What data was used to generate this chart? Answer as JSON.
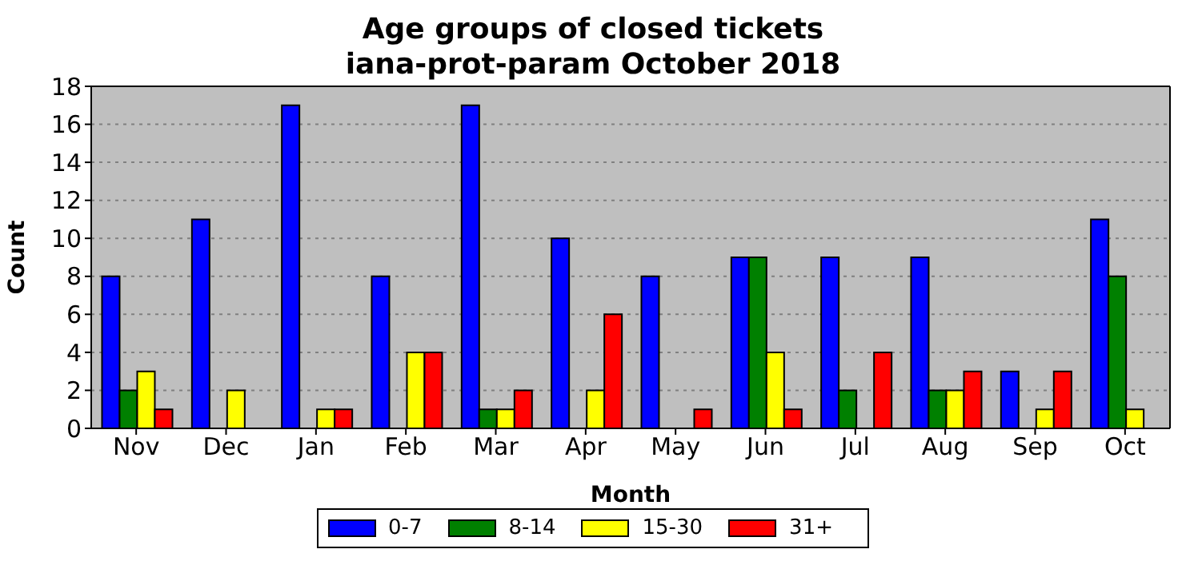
{
  "chart_data": {
    "type": "bar",
    "title": "Age groups of closed tickets",
    "subtitle": "iana-prot-param October 2018",
    "xlabel": "Month",
    "ylabel": "Count",
    "categories": [
      "Nov",
      "Dec",
      "Jan",
      "Feb",
      "Mar",
      "Apr",
      "May",
      "Jun",
      "Jul",
      "Aug",
      "Sep",
      "Oct"
    ],
    "series": [
      {
        "name": "0-7",
        "color": "#0000ff",
        "values": [
          8,
          11,
          17,
          8,
          17,
          10,
          8,
          9,
          9,
          9,
          3,
          11
        ]
      },
      {
        "name": "8-14",
        "color": "#008000",
        "values": [
          2,
          0,
          0,
          0,
          1,
          0,
          0,
          9,
          2,
          2,
          0,
          8
        ]
      },
      {
        "name": "15-30",
        "color": "#ffff00",
        "values": [
          3,
          2,
          1,
          4,
          1,
          2,
          0,
          4,
          0,
          2,
          1,
          1
        ]
      },
      {
        "name": "31+",
        "color": "#ff0000",
        "values": [
          1,
          0,
          1,
          4,
          2,
          6,
          1,
          1,
          4,
          3,
          3,
          0
        ]
      }
    ],
    "ylim": [
      0,
      18
    ],
    "yticks": [
      0,
      2,
      4,
      6,
      8,
      10,
      12,
      14,
      16,
      18
    ],
    "grid": "y",
    "legend": "bottom"
  }
}
